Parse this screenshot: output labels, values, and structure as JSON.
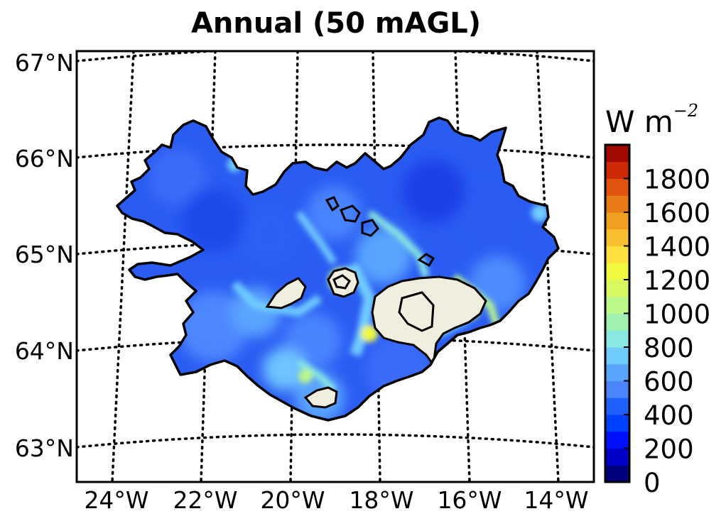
{
  "title": "Annual (50 mAGL)",
  "map": {
    "region": "Iceland",
    "lat_labels": [
      "67°N",
      "66°N",
      "65°N",
      "64°N",
      "63°N"
    ],
    "lon_labels": [
      "24°W",
      "22°W",
      "20°W",
      "18°W",
      "16°W",
      "14°W"
    ],
    "gridlines": "dotted",
    "glacier_fill_color": "#f0eedf",
    "coastline_color": "#000000"
  },
  "colorbar": {
    "unit_base": "W m",
    "unit_exponent": "−2",
    "ticks": [
      "0",
      "200",
      "400",
      "600",
      "800",
      "1000",
      "1200",
      "1400",
      "1600",
      "1800"
    ],
    "levels": [
      0,
      100,
      200,
      300,
      400,
      500,
      600,
      700,
      800,
      900,
      1000,
      1100,
      1200,
      1300,
      1400,
      1500,
      1600,
      1700,
      1800,
      1900,
      2000
    ],
    "colors": [
      "#00007f",
      "#0000c8",
      "#0010ff",
      "#0040ff",
      "#2060ff",
      "#4a84ff",
      "#5aa4ff",
      "#70ccff",
      "#8ae8e0",
      "#a0f0b0",
      "#bcf88c",
      "#d8f860",
      "#f0f840",
      "#ffe040",
      "#f8c030",
      "#f0a020",
      "#e87a18",
      "#e05410",
      "#cc2a08",
      "#a00a00"
    ]
  }
}
